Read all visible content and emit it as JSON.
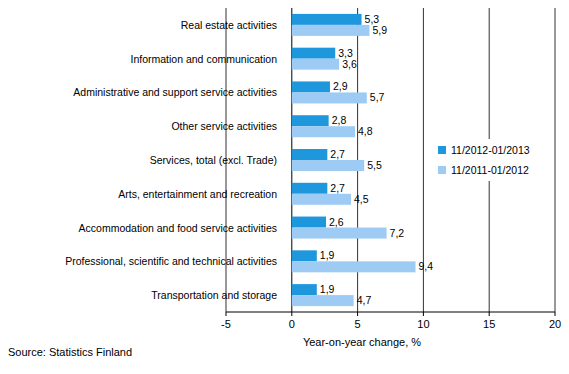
{
  "chart_data": {
    "type": "bar",
    "orientation": "horizontal",
    "categories": [
      "Real estate activities",
      "Information and communication",
      "Administrative and support service activities",
      "Other service activities",
      "Services, total (excl. Trade)",
      "Arts, entertainment and recreation",
      "Accommodation and food service activities",
      "Professional, scientific and technical activities",
      "Transportation and storage"
    ],
    "series": [
      {
        "name": "11/2012-01/2013",
        "color": "#1f97dc",
        "values": [
          5.3,
          3.3,
          2.9,
          2.8,
          2.7,
          2.7,
          2.6,
          1.9,
          1.9
        ],
        "value_labels": [
          "5,3",
          "3,3",
          "2,9",
          "2,8",
          "2,7",
          "2,7",
          "2,6",
          "1,9",
          "1,9"
        ]
      },
      {
        "name": "11/2011-01/2012",
        "color": "#9dcbf3",
        "values": [
          5.9,
          3.6,
          5.7,
          4.8,
          5.5,
          4.5,
          7.2,
          9.4,
          4.7
        ],
        "value_labels": [
          "5,9",
          "3,6",
          "5,7",
          "4,8",
          "5,5",
          "4,5",
          "7,2",
          "9,4",
          "4,7"
        ]
      }
    ],
    "x_label": "Year-on-year change, %",
    "source": "Source: Statistics Finland",
    "xlim": [
      -5,
      20
    ],
    "xticks": [
      -5,
      0,
      5,
      10,
      15,
      20
    ],
    "grid": true,
    "legend": "right",
    "data_labels": true
  }
}
